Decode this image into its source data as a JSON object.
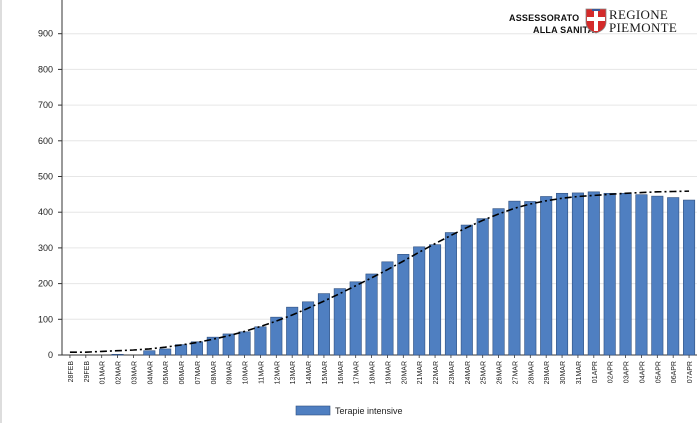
{
  "logo": {
    "line1": "ASSESSORATO",
    "line2": "ALLA SANITA'",
    "region1": "REGIONE",
    "region2": "PIEMONTE"
  },
  "colors": {
    "bar": "#4f7fc1",
    "bar_stroke": "#2f4f7f",
    "trend": "#000000",
    "grid": "#e6e6e6",
    "crest_red": "#d42a2a"
  },
  "chart_data": {
    "type": "bar",
    "categories": [
      "28FEB",
      "29FEB",
      "01MAR",
      "02MAR",
      "03MAR",
      "04MAR",
      "05MAR",
      "06MAR",
      "07MAR",
      "08MAR",
      "09MAR",
      "10MAR",
      "11MAR",
      "12MAR",
      "13MAR",
      "14MAR",
      "15MAR",
      "16MAR",
      "17MAR",
      "18MAR",
      "19MAR",
      "20MAR",
      "21MAR",
      "22MAR",
      "23MAR",
      "24MAR",
      "25MAR",
      "26MAR",
      "27MAR",
      "28MAR",
      "29MAR",
      "30MAR",
      "31MAR",
      "01APR",
      "02APR",
      "03APR",
      "04APR",
      "05APR",
      "06APR",
      "07APR"
    ],
    "series": [
      {
        "name": "Terapie intensive",
        "values": [
          0,
          0,
          0,
          2,
          0,
          12,
          17,
          29,
          37,
          50,
          59,
          65,
          79,
          106,
          134,
          149,
          172,
          186,
          205,
          227,
          261,
          282,
          303,
          309,
          343,
          364,
          382,
          410,
          431,
          430,
          444,
          453,
          454,
          457,
          453,
          453,
          449,
          445,
          441,
          434
        ]
      }
    ],
    "trend_line": [
      8,
      8,
      10,
      12,
      14,
      17,
      22,
      28,
      35,
      44,
      54,
      66,
      80,
      95,
      112,
      131,
      151,
      172,
      194,
      216,
      239,
      263,
      288,
      312,
      335,
      357,
      377,
      395,
      411,
      423,
      432,
      439,
      444,
      447,
      450,
      453,
      455,
      457,
      458,
      459
    ],
    "ylim": [
      0,
      1000
    ],
    "yticks": [
      0,
      100,
      200,
      300,
      400,
      500,
      600,
      700,
      800,
      900
    ],
    "grid": true,
    "legend": "bottom-center"
  }
}
